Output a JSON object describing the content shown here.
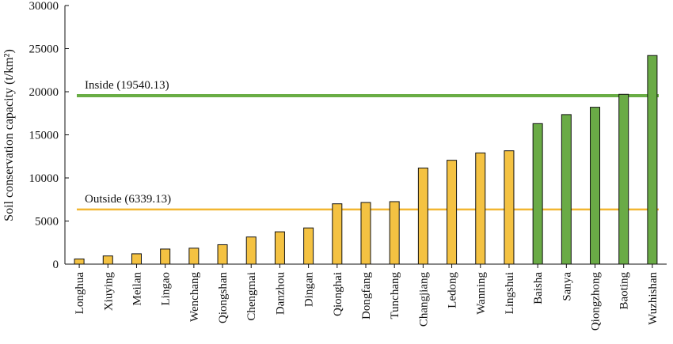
{
  "chart_data": {
    "type": "bar",
    "ylabel": "Soil conservation capacity (t/km²)",
    "xlabel": "",
    "ylim": [
      0,
      30000
    ],
    "yticks": [
      0,
      5000,
      10000,
      15000,
      20000,
      25000,
      30000
    ],
    "grid": false,
    "categories": [
      "Longhua",
      "Xiuying",
      "Meilan",
      "Lingao",
      "Wenchang",
      "Qiongshan",
      "Chengmai",
      "Danzhou",
      "Dingan",
      "Qionghai",
      "Dongfang",
      "Tunchang",
      "Changjiang",
      "Ledong",
      "Wanning",
      "Lingshui",
      "Baisha",
      "Sanya",
      "Qiongzhong",
      "Baoting",
      "Wuzhishan"
    ],
    "values": [
      600,
      950,
      1200,
      1750,
      1850,
      2250,
      3150,
      3750,
      4200,
      7000,
      7150,
      7250,
      11150,
      12050,
      12900,
      13150,
      16300,
      17350,
      18200,
      19700,
      24200
    ],
    "group": [
      "outside",
      "outside",
      "outside",
      "outside",
      "outside",
      "outside",
      "outside",
      "outside",
      "outside",
      "outside",
      "outside",
      "outside",
      "outside",
      "outside",
      "outside",
      "outside",
      "inside",
      "inside",
      "inside",
      "inside",
      "inside"
    ],
    "colors": {
      "outside": "#f4c242",
      "inside": "#6aab46",
      "outside_line": "#f2b632",
      "inside_line": "#69ad45",
      "bar_edge": "#111111"
    },
    "reference_lines": [
      {
        "label": "Inside (19540.13)",
        "value": 19540.13,
        "group": "inside"
      },
      {
        "label": "Outside (6339.13)",
        "value": 6339.13,
        "group": "outside"
      }
    ]
  }
}
